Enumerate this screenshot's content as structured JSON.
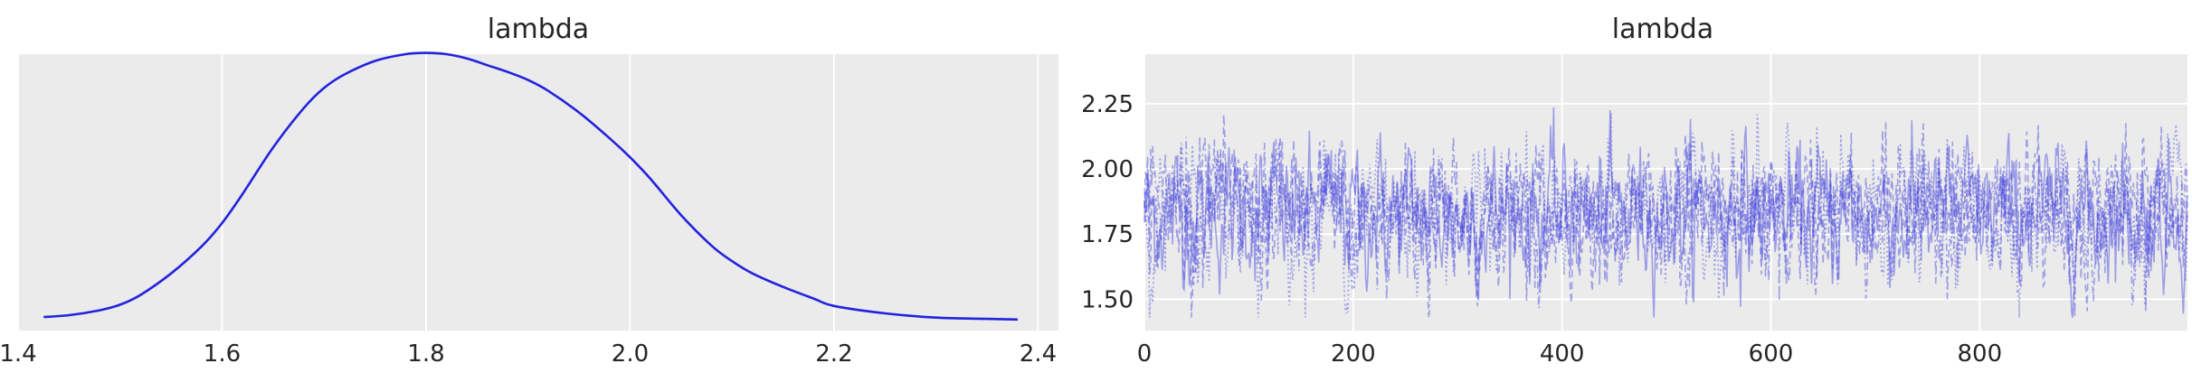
{
  "colors": {
    "background": "#ffffff",
    "panel": "#ebebeb",
    "grid": "#ffffff",
    "line": "#2222dd",
    "trace": "#3d3ddd",
    "text": "#262626"
  },
  "chart_data": [
    {
      "type": "line",
      "title": "lambda",
      "xlabel": "",
      "ylabel": "",
      "xlim": [
        1.4,
        2.42
      ],
      "xticks": [
        1.4,
        1.6,
        1.8,
        2.0,
        2.2,
        2.4
      ],
      "xtick_labels": [
        "1.4",
        "1.6",
        "1.8",
        "2.0",
        "2.2",
        "2.4"
      ],
      "ylim": [
        0,
        4.5
      ],
      "yticks_shown": false,
      "grid": "vertical",
      "x": [
        1.425,
        1.45,
        1.48,
        1.5,
        1.52,
        1.55,
        1.58,
        1.6,
        1.62,
        1.65,
        1.68,
        1.7,
        1.72,
        1.75,
        1.78,
        1.8,
        1.82,
        1.84,
        1.86,
        1.88,
        1.9,
        1.92,
        1.95,
        1.98,
        2.0,
        2.02,
        2.05,
        2.08,
        2.1,
        2.12,
        2.15,
        2.18,
        2.2,
        2.25,
        2.3,
        2.35,
        2.38
      ],
      "y": [
        0.22,
        0.25,
        0.33,
        0.42,
        0.58,
        0.93,
        1.37,
        1.75,
        2.22,
        2.98,
        3.62,
        3.95,
        4.17,
        4.39,
        4.5,
        4.52,
        4.5,
        4.43,
        4.32,
        4.21,
        4.08,
        3.9,
        3.55,
        3.13,
        2.82,
        2.47,
        1.88,
        1.38,
        1.13,
        0.93,
        0.71,
        0.52,
        0.4,
        0.28,
        0.21,
        0.19,
        0.18
      ]
    },
    {
      "type": "line",
      "title": "lambda",
      "xlabel": "",
      "ylabel": "",
      "xlim": [
        0,
        999
      ],
      "xticks": [
        0,
        200,
        400,
        600,
        800
      ],
      "xtick_labels": [
        "0",
        "200",
        "400",
        "600",
        "800"
      ],
      "ylim": [
        1.38,
        2.44
      ],
      "yticks": [
        1.5,
        1.75,
        2.0,
        2.25
      ],
      "ytick_labels": [
        "1.50",
        "1.75",
        "2.00",
        "2.25"
      ],
      "grid": "both",
      "n_chains": 4,
      "n_draws": 1000,
      "line_styles": [
        "solid",
        "dashed",
        "dotted",
        "dashdot"
      ],
      "mean": 1.83,
      "sd": 0.13,
      "min_approx": 1.43,
      "max_approx": 2.38
    }
  ]
}
